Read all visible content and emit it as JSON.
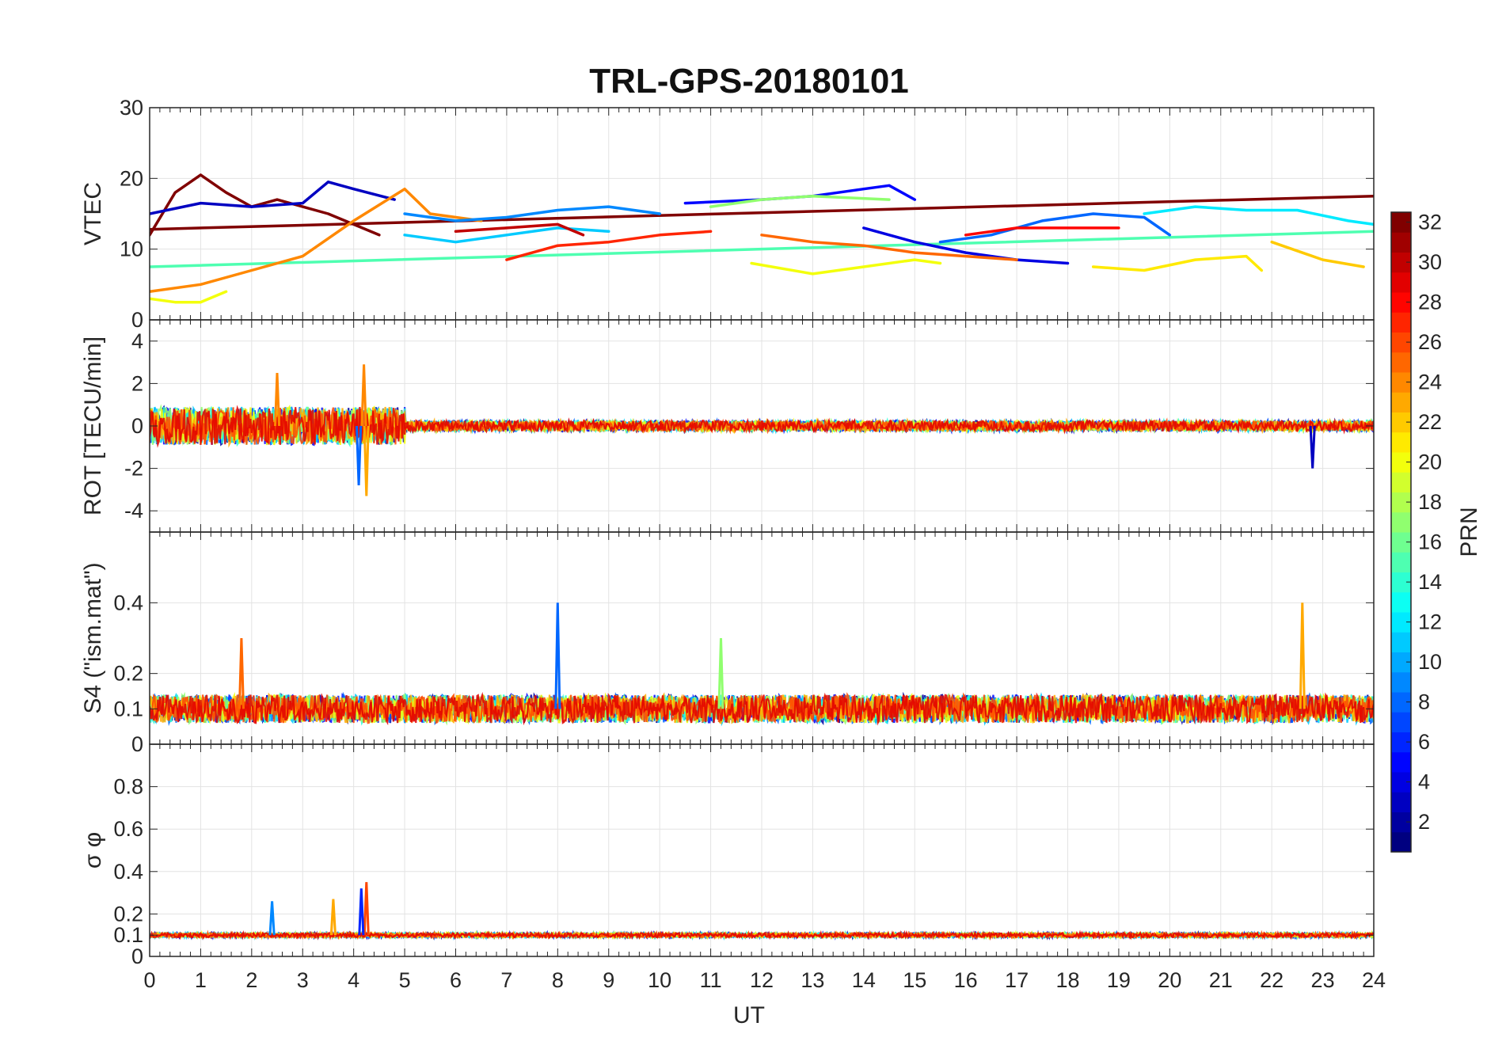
{
  "chart_data": {
    "type": "line",
    "title": "TRL-GPS-20180101",
    "xlabel": "UT",
    "xlim": [
      0,
      24
    ],
    "xticks": [
      0,
      1,
      2,
      3,
      4,
      5,
      6,
      7,
      8,
      9,
      10,
      11,
      12,
      13,
      14,
      15,
      16,
      17,
      18,
      19,
      20,
      21,
      22,
      23,
      24
    ],
    "grid": true,
    "colorbar": {
      "label": "PRN",
      "range": [
        1,
        32
      ],
      "ticks": [
        2,
        4,
        6,
        8,
        10,
        12,
        14,
        16,
        18,
        20,
        22,
        24,
        26,
        28,
        30,
        32
      ],
      "colormap": "jet"
    },
    "panels": [
      {
        "ylabel": "VTEC",
        "ylim": [
          0,
          30
        ],
        "yticks": [
          0,
          10,
          20,
          30
        ],
        "series": [
          {
            "prn": 32,
            "x": [
              0,
              0.5,
              1.0,
              1.5,
              2.0,
              2.5,
              3.0,
              3.5,
              4.0,
              4.5
            ],
            "y": [
              12,
              18,
              20.5,
              18,
              16,
              17,
              16,
              15,
              13.5,
              12
            ]
          },
          {
            "prn": 32,
            "x": [
              0,
              24
            ],
            "y": [
              12.8,
              17.5
            ]
          },
          {
            "prn": 3,
            "x": [
              0,
              1,
              2,
              3,
              3.5,
              4,
              4.8
            ],
            "y": [
              15,
              16.5,
              16,
              16.5,
              19.5,
              18.5,
              17
            ]
          },
          {
            "prn": 15,
            "x": [
              0,
              24
            ],
            "y": [
              7.5,
              12.5
            ]
          },
          {
            "prn": 24,
            "x": [
              0,
              1,
              2,
              3,
              4,
              5,
              5.5,
              6.5
            ],
            "y": [
              4,
              5,
              7,
              9,
              14,
              18.5,
              15,
              14
            ]
          },
          {
            "prn": 20,
            "x": [
              0,
              0.5,
              1.0,
              1.5
            ],
            "y": [
              3,
              2.5,
              2.5,
              4
            ]
          },
          {
            "prn": 5,
            "x": [
              10.5,
              12,
              13,
              14,
              14.5,
              15
            ],
            "y": [
              16.5,
              17,
              17.5,
              18.5,
              19,
              17
            ]
          },
          {
            "prn": 17,
            "x": [
              11,
              12,
              13,
              14.5
            ],
            "y": [
              16,
              17,
              17.5,
              17
            ]
          },
          {
            "prn": 4,
            "x": [
              14,
              15,
              16,
              17,
              18
            ],
            "y": [
              13,
              11,
              9.5,
              8.5,
              8
            ]
          },
          {
            "prn": 20,
            "x": [
              11.8,
              13,
              14,
              15,
              15.5
            ],
            "y": [
              8,
              6.5,
              7.5,
              8.5,
              8
            ]
          },
          {
            "prn": 21,
            "x": [
              18.5,
              19.5,
              20.5,
              21.5,
              21.8
            ],
            "y": [
              7.5,
              7,
              8.5,
              9,
              7
            ]
          },
          {
            "prn": 27,
            "x": [
              7,
              8,
              9,
              10,
              11
            ],
            "y": [
              8.5,
              10.5,
              11,
              12,
              12.5
            ]
          },
          {
            "prn": 25,
            "x": [
              12,
              13,
              14,
              15,
              16,
              17
            ],
            "y": [
              12,
              11,
              10.5,
              9.5,
              9,
              8.5
            ]
          },
          {
            "prn": 8,
            "x": [
              15.5,
              16.5,
              17.5,
              18.5,
              19.5,
              20
            ],
            "y": [
              11,
              12,
              14,
              15,
              14.5,
              12
            ]
          },
          {
            "prn": 12,
            "x": [
              19.5,
              20.5,
              21.5,
              22.5,
              23.5,
              24
            ],
            "y": [
              15,
              16,
              15.5,
              15.5,
              14,
              13.5
            ]
          },
          {
            "prn": 28,
            "x": [
              16,
              17,
              18,
              19
            ],
            "y": [
              12,
              13,
              13,
              13
            ]
          },
          {
            "prn": 9,
            "x": [
              5,
              6,
              7,
              8,
              9,
              10
            ],
            "y": [
              15,
              14,
              14.5,
              15.5,
              16,
              15
            ]
          },
          {
            "prn": 11,
            "x": [
              5,
              6,
              7,
              8,
              9
            ],
            "y": [
              12,
              11,
              12,
              13,
              12.5
            ]
          },
          {
            "prn": 30,
            "x": [
              6,
              7,
              8,
              8.5
            ],
            "y": [
              12.5,
              13,
              13.5,
              12
            ]
          },
          {
            "prn": 22,
            "x": [
              22,
              23,
              23.8
            ],
            "y": [
              11,
              8.5,
              7.5
            ]
          }
        ]
      },
      {
        "ylabel": "ROT [TECU/min]",
        "ylim": [
          -5,
          5
        ],
        "yticks": [
          -4,
          -2,
          0,
          2,
          4
        ],
        "notes": "noise around 0; spikes up to ~2.9 and down to ~-3.3 near UT 4.2; dip to ~-2 near UT 22.8"
      },
      {
        "ylabel": "S4 (\"ism.mat\")",
        "ylim": [
          0,
          0.6
        ],
        "yticks": [
          0,
          0.1,
          0.2,
          0.4
        ],
        "notes": "baseline ~0.05-0.15; spikes ~0.4 at UT 8.0 and UT 22.6"
      },
      {
        "ylabel": "σ φ",
        "ylim": [
          0,
          1
        ],
        "yticks": [
          0,
          0.1,
          0.2,
          0.4,
          0.6,
          0.8
        ],
        "notes": "baseline ~0.1; peak ~0.35 at UT 4.25"
      }
    ]
  }
}
